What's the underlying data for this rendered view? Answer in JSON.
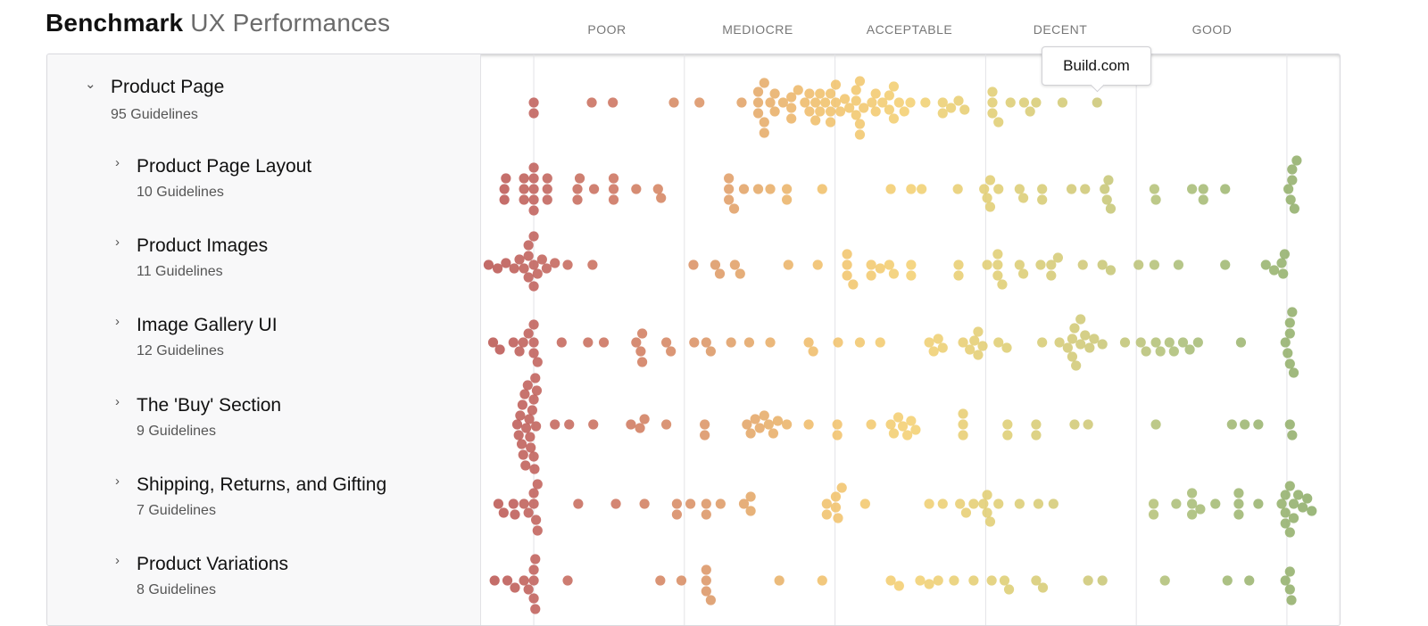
{
  "header": {
    "title_bold": "Benchmark",
    "title_light": "UX Performances"
  },
  "columns": [
    "POOR",
    "MEDIOCRE",
    "ACCEPTABLE",
    "DECENT",
    "GOOD"
  ],
  "rows": [
    {
      "name": "Product Page",
      "count": "95 Guidelines",
      "level": 0,
      "expanded": true
    },
    {
      "name": "Product Page Layout",
      "count": "10 Guidelines",
      "level": 1,
      "expanded": false
    },
    {
      "name": "Product Images",
      "count": "11 Guidelines",
      "level": 1,
      "expanded": false
    },
    {
      "name": "Image Gallery UI",
      "count": "12 Guidelines",
      "level": 1,
      "expanded": false
    },
    {
      "name": "The 'Buy' Section",
      "count": "9 Guidelines",
      "level": 1,
      "expanded": false
    },
    {
      "name": "Shipping, Returns, and Gifting",
      "count": "7 Guidelines",
      "level": 1,
      "expanded": false
    },
    {
      "name": "Product Variations",
      "count": "8 Guidelines",
      "level": 1,
      "expanded": false
    }
  ],
  "tooltip": {
    "label": "Build.com"
  },
  "colors": {
    "poor": "#bf5a55",
    "mediocre": "#dc9560",
    "acceptable": "#f2c66a",
    "decent": "#d4c872",
    "good": "#8fae6a"
  },
  "chart_data": {
    "type": "scatter",
    "subtype": "beeswarm",
    "xlim": [
      -7,
      107
    ],
    "gridlines": [
      0,
      20,
      40,
      60,
      80,
      100
    ],
    "categories": [
      "POOR",
      "MEDIOCRE",
      "ACCEPTABLE",
      "DECENT",
      "GOOD"
    ],
    "highlight": {
      "series": 0,
      "x": 74.8,
      "label": "Build.com"
    },
    "series": [
      {
        "name": "Product Page",
        "values": [
          0,
          0,
          7.7,
          10.5,
          18.6,
          22,
          27.6,
          29.8,
          29.8,
          29.8,
          30.6,
          30.6,
          30.6,
          31.4,
          32,
          32,
          33.1,
          34.2,
          34.2,
          34.2,
          35.1,
          36,
          36.6,
          36.6,
          37.4,
          37.4,
          38,
          38,
          38.7,
          39.4,
          39.4,
          39.4,
          40.1,
          40.1,
          40.7,
          41.3,
          41.9,
          42.8,
          42.8,
          42.8,
          43.3,
          43.3,
          43.3,
          43.8,
          44.9,
          45.4,
          45.4,
          46.3,
          47.2,
          47.2,
          47.8,
          47.8,
          48.5,
          49.2,
          50,
          52,
          54.3,
          54.3,
          55.4,
          56.4,
          57.2,
          60.9,
          60.9,
          60.9,
          61.7,
          63.3,
          65.1,
          65.9,
          66.7,
          70.2,
          74.8
        ]
      },
      {
        "name": "Product Page Layout",
        "values": [
          -3.9,
          -3.9,
          -3.7,
          -1.3,
          -1.3,
          -1.3,
          0,
          0,
          0,
          0,
          0,
          1.8,
          1.8,
          1.8,
          5.8,
          5.8,
          6.1,
          8,
          10.6,
          10.6,
          10.6,
          13.6,
          16.5,
          16.9,
          25.9,
          25.9,
          25.9,
          26.6,
          27.9,
          29.8,
          31.4,
          33.6,
          33.6,
          38.3,
          47.4,
          50.1,
          51.5,
          56.3,
          59.8,
          60.2,
          60.6,
          60.6,
          61.7,
          64.5,
          65,
          67.5,
          67.5,
          71.4,
          73.2,
          75.8,
          76.1,
          76.3,
          76.6,
          82.4,
          82.6,
          87.4,
          88.9,
          88.9,
          91.8,
          100.2,
          100.5,
          100.7,
          100.7,
          101,
          101.3
        ]
      },
      {
        "name": "Product Images",
        "values": [
          -6,
          -4.8,
          -3.7,
          -2.6,
          -1.9,
          -1.3,
          -0.7,
          -0.7,
          -0.7,
          0,
          0,
          0,
          0.5,
          1.1,
          1.7,
          2.8,
          4.5,
          7.8,
          21.2,
          24.1,
          24.7,
          26.7,
          27.4,
          33.8,
          37.7,
          41.6,
          41.6,
          41.6,
          42.4,
          44.8,
          44.8,
          46,
          47.2,
          47.8,
          50.1,
          50.1,
          56.4,
          56.4,
          60.2,
          61.6,
          61.6,
          61.6,
          62.2,
          64.5,
          65,
          67.3,
          68.7,
          68.7,
          69.6,
          72.9,
          75.5,
          76.6,
          80.3,
          82.4,
          85.6,
          91.8,
          97.2,
          98.3,
          99.3,
          99.5,
          99.7
        ]
      },
      {
        "name": "Image Gallery UI",
        "values": [
          -5.4,
          -4.5,
          -2.7,
          -1.9,
          -1.4,
          -0.7,
          0,
          0,
          0,
          0.5,
          3.7,
          7.2,
          9.3,
          13.6,
          14.2,
          14.4,
          14.4,
          17.6,
          18.2,
          21.3,
          22.9,
          23.5,
          26.2,
          28.6,
          31.4,
          36.5,
          37.1,
          40.4,
          43.3,
          46,
          52.5,
          53.1,
          53.7,
          54.3,
          57,
          57.9,
          58.5,
          59,
          59,
          59.6,
          61.7,
          62.8,
          67.5,
          69.8,
          70.9,
          71.5,
          71.5,
          71.8,
          72,
          72.6,
          72.6,
          73.2,
          73.8,
          74.4,
          75.5,
          78.5,
          80.6,
          81.3,
          82.6,
          83.2,
          84.4,
          85,
          86.2,
          87.1,
          88.2,
          93.9,
          99.8,
          100.1,
          100.4,
          100.4,
          100.4,
          100.7,
          100.9
        ]
      },
      {
        "name": "The 'Buy' Section",
        "values": [
          -2.2,
          -2,
          -1.8,
          -1.6,
          -1.5,
          -1.4,
          -1.2,
          -1.1,
          -1,
          -0.8,
          -0.6,
          -0.5,
          -0.4,
          -0.2,
          0,
          0,
          0.1,
          0.2,
          0.3,
          0.4,
          2.8,
          4.7,
          7.9,
          12.9,
          14.1,
          14.7,
          17.6,
          22.7,
          22.7,
          28.3,
          28.8,
          29.4,
          30,
          30.6,
          31.2,
          31.8,
          32.4,
          33.6,
          36.5,
          40.3,
          40.3,
          44.8,
          47.4,
          47.8,
          48.4,
          49,
          49.6,
          50.1,
          50.7,
          57,
          57,
          57,
          62.9,
          62.9,
          66.7,
          66.7,
          71.8,
          73.6,
          82.6,
          92.7,
          94.4,
          96.2,
          100.4,
          100.7
        ]
      },
      {
        "name": "Shipping, Returns, and Gifting",
        "values": [
          -4.7,
          -4,
          -2.7,
          -2.5,
          -1.3,
          -0.7,
          0,
          0,
          0.3,
          0.5,
          0.5,
          5.9,
          10.9,
          14.7,
          19,
          19,
          20.8,
          22.9,
          22.9,
          24.8,
          27.9,
          28.8,
          28.8,
          38.9,
          38.9,
          40.1,
          40.1,
          40.4,
          40.9,
          44,
          52.5,
          54.3,
          56.6,
          57.4,
          58.4,
          59.7,
          60.2,
          60.2,
          60.6,
          61.7,
          64.5,
          67,
          69,
          82.3,
          82.3,
          85.3,
          87.4,
          87.4,
          87.4,
          88.5,
          90.5,
          93.6,
          93.6,
          93.6,
          96.2,
          99.3,
          99.8,
          99.8,
          99.8,
          100.4,
          100.4,
          100.9,
          100.9,
          101.5,
          102.1,
          102.7,
          103.3
        ]
      },
      {
        "name": "Product Variations",
        "values": [
          -5.2,
          -3.5,
          -2.5,
          -1.3,
          -0.7,
          0,
          0,
          0,
          0.2,
          0.2,
          4.5,
          16.8,
          19.6,
          22.9,
          22.9,
          22.9,
          23.5,
          32.6,
          38.3,
          47.4,
          48.5,
          51.3,
          52.5,
          53.7,
          55.8,
          58.4,
          60.8,
          62.5,
          63.1,
          66.7,
          67.6,
          73.6,
          75.5,
          83.8,
          92.1,
          95,
          99.8,
          100.4,
          100.4,
          100.6
        ]
      }
    ]
  }
}
